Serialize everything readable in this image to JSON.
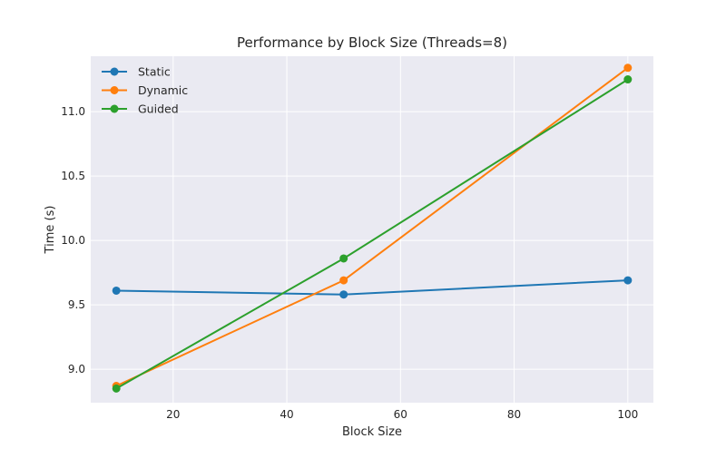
{
  "chart_data": {
    "type": "line",
    "title": "Performance by Block Size (Threads=8)",
    "xlabel": "Block Size",
    "ylabel": "Time (s)",
    "x": [
      10,
      50,
      100
    ],
    "xlim": [
      5.5,
      104.5
    ],
    "ylim": [
      8.74,
      11.43
    ],
    "xticks": [
      20,
      40,
      60,
      80,
      100
    ],
    "yticks": [
      9.0,
      9.5,
      10.0,
      10.5,
      11.0
    ],
    "xtick_labels": [
      "20",
      "40",
      "60",
      "80",
      "100"
    ],
    "ytick_labels": [
      "9.0",
      "9.5",
      "10.0",
      "10.5",
      "11.0"
    ],
    "grid": true,
    "legend_position": "top-left",
    "series": [
      {
        "name": "Static",
        "color": "#1f77b4",
        "values": [
          9.61,
          9.58,
          9.69
        ]
      },
      {
        "name": "Dynamic",
        "color": "#ff7f0e",
        "values": [
          8.87,
          9.69,
          11.34
        ]
      },
      {
        "name": "Guided",
        "color": "#2ca02c",
        "values": [
          8.85,
          9.86,
          11.25
        ]
      }
    ],
    "background": "#eaeaf2",
    "gridline_color": "#ffffff"
  }
}
